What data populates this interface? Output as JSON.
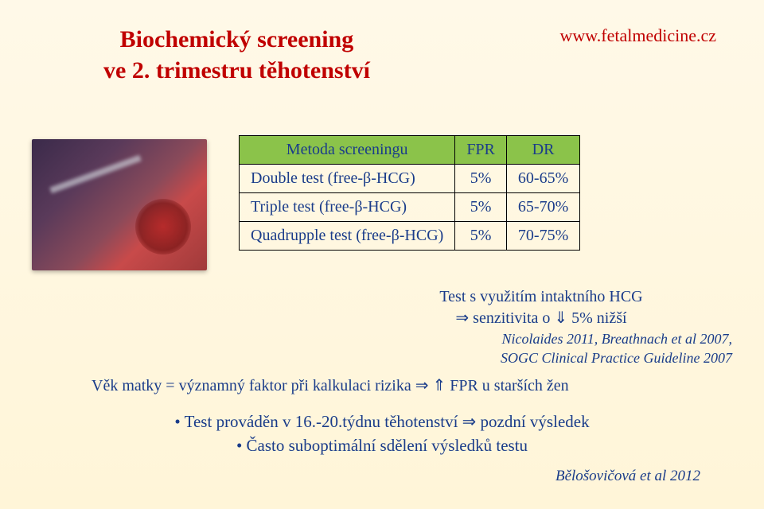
{
  "url": {
    "text": "www.fetalmedicine.cz",
    "color": "#c00000",
    "fontsize": 22
  },
  "title": {
    "line1": "Biochemický screening",
    "line2": "ve 2. trimestru těhotenství",
    "color": "#c00000",
    "fontsize": 30
  },
  "table": {
    "header_bg": "#8bc34a",
    "columns": [
      "Metoda screeningu",
      "FPR",
      "DR"
    ],
    "rows": [
      [
        "Double test (free-β-HCG)",
        "5%",
        "60-65%"
      ],
      [
        "Triple test (free-β-HCG)",
        "5%",
        "65-70%"
      ],
      [
        "Quadrupple test (free-β-HCG)",
        "5%",
        "70-75%"
      ]
    ],
    "fontsize": 20,
    "text_color": "#1a3c8a"
  },
  "note": {
    "line1": "Test s využitím intaktního HCG",
    "line2": "⇒ senzitivita o ⇓ 5% nižší",
    "ref1": "Nicolaides 2011, Breathnach et al 2007,",
    "ref2": "SOGC Clinical Practice Guideline 2007",
    "color": "#1a3c8a",
    "fontsize": 20,
    "ref_fontsize": 18
  },
  "age_line": {
    "text": "Věk matky = významný faktor při kalkulaci rizika ⇒ ⇑ FPR u starších žen",
    "color": "#1a3c8a",
    "fontsize": 20
  },
  "bullets": {
    "b1": "• Test prováděn v 16.-20.týdnu těhotenství ⇒ pozdní výsledek",
    "b2": "• Často suboptimální sdělení výsledků testu",
    "color": "#1a3c8a",
    "fontsize": 21
  },
  "bottom_ref": {
    "text": "Bělošovičová et al 2012",
    "color": "#1a3c8a",
    "fontsize": 19
  }
}
